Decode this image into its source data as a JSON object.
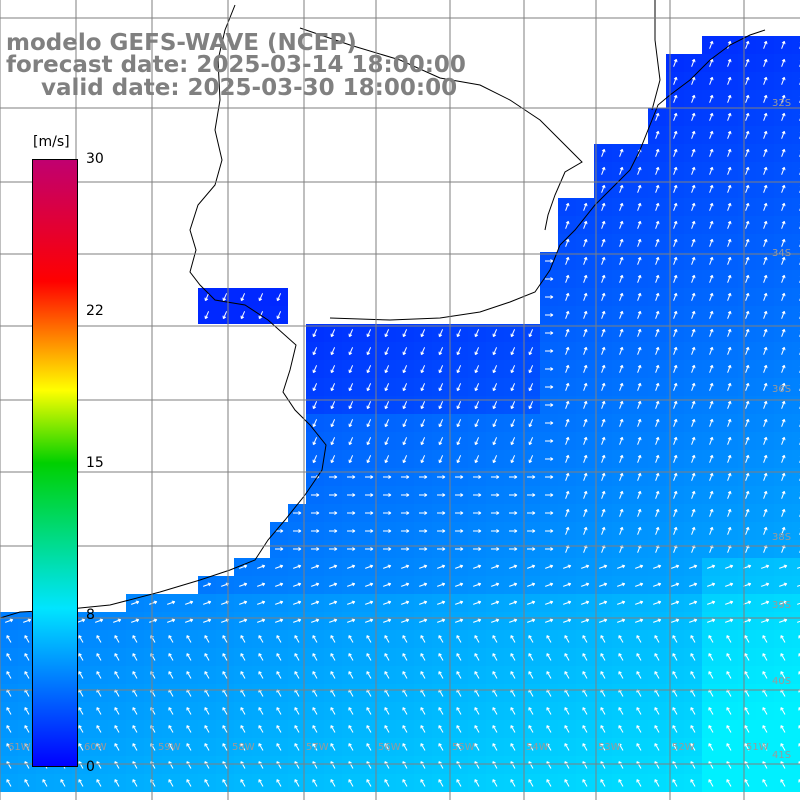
{
  "title": {
    "line1": "modelo GEFS-WAVE (NCEP)",
    "line2": "forecast date: 2025-03-14 18:00:00",
    "line3": "valid date: 2025-03-30 18:00:00"
  },
  "colorbar": {
    "unit": "[m/s]",
    "ticks": [
      "30",
      "22",
      "15",
      "8",
      "0"
    ],
    "stops": [
      "#0000ff",
      "#00e5ff",
      "#00d000",
      "#ffff00",
      "#ff0000",
      "#c00070"
    ]
  },
  "grid_labels": {
    "lat": [
      "32S",
      "34S",
      "36S",
      "38S",
      "39S",
      "40S",
      "41S"
    ],
    "lon": [
      "61W",
      "60W",
      "59W",
      "58W",
      "57W",
      "56W",
      "55W",
      "54W",
      "53W",
      "52W",
      "51W"
    ]
  },
  "colors": {
    "land": "#ffffff",
    "coast": "#000000",
    "grid": "#7f7f7f",
    "arrow": "#ffffff"
  }
}
